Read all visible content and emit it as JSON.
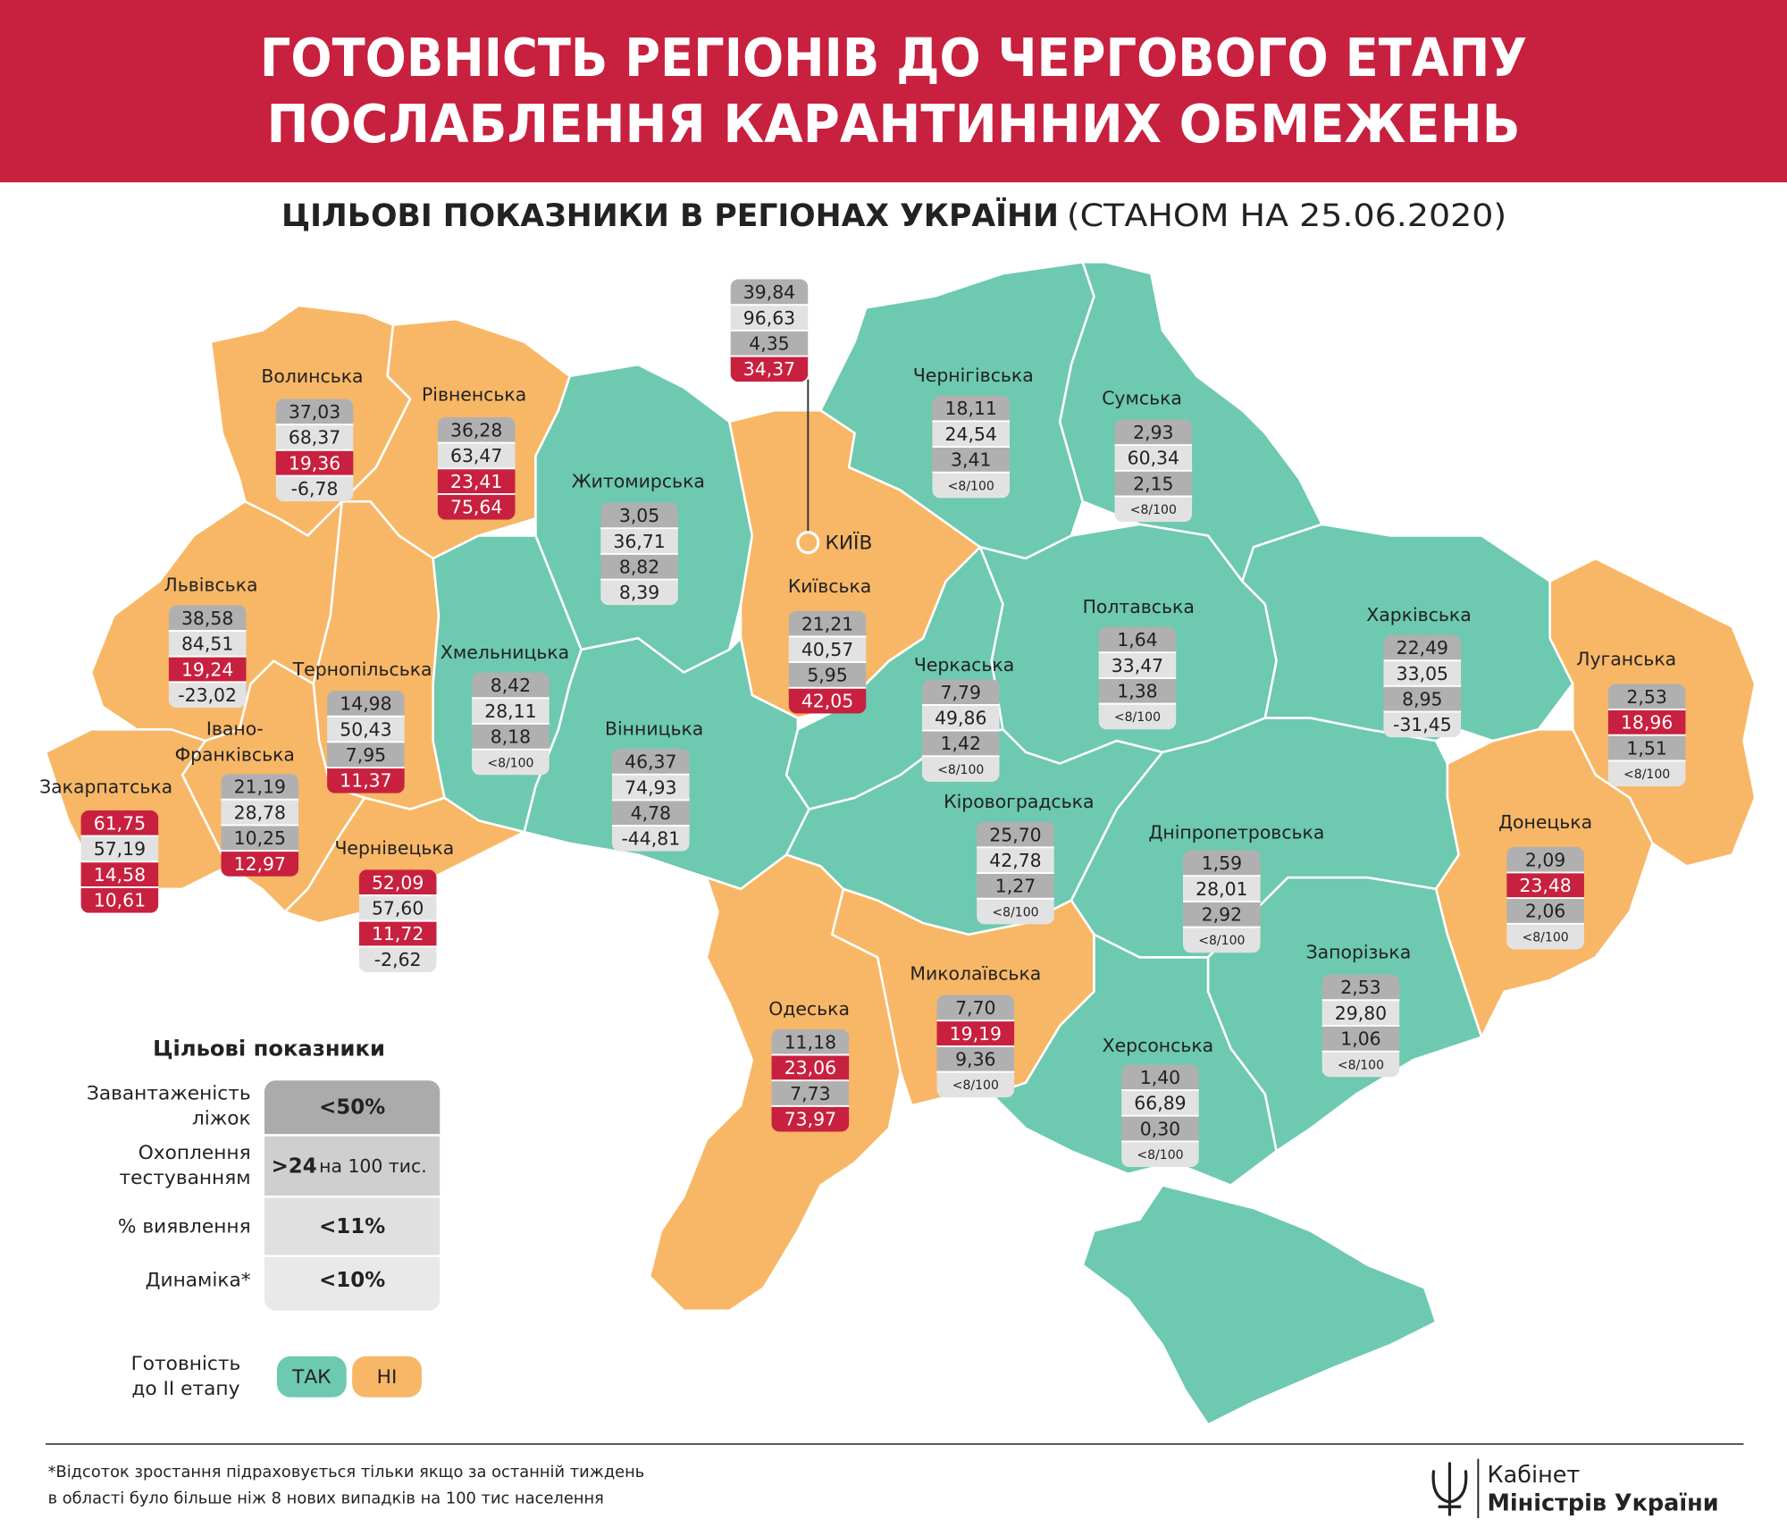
{
  "header": {
    "title_lines": [
      "ГОТОВНІСТЬ РЕГІОНІВ ДО ЧЕРГОВОГО ЕТАПУ",
      "ПОСЛАБЛЕННЯ КАРАНТИННИХ ОБМЕЖЕНЬ"
    ],
    "subtitle": "ЦІЛЬОВІ ПОКАЗНИКИ В РЕГІОНАХ УКРАЇНИ",
    "subtitle_date": "(СТАНОМ НА 25.06.2020)"
  },
  "kyiv_city": {
    "label": "КИЇВ",
    "values": [
      "39,84",
      "96,63",
      "4,35",
      "34,37"
    ],
    "failed": [
      false,
      false,
      false,
      true
    ]
  },
  "regions": [
    {
      "name": [
        "Волинська"
      ],
      "ready": false,
      "values": [
        "37,03",
        "68,37",
        "19,36",
        "-6,78"
      ],
      "failed": [
        false,
        false,
        true,
        false
      ]
    },
    {
      "name": [
        "Рівненська"
      ],
      "ready": false,
      "values": [
        "36,28",
        "63,47",
        "23,41",
        "75,64"
      ],
      "failed": [
        false,
        false,
        true,
        true
      ]
    },
    {
      "name": [
        "Житомирська"
      ],
      "ready": true,
      "values": [
        "3,05",
        "36,71",
        "8,82",
        "8,39"
      ],
      "failed": [
        false,
        false,
        false,
        false
      ]
    },
    {
      "name": [
        "Київська"
      ],
      "ready": false,
      "values": [
        "21,21",
        "40,57",
        "5,95",
        "42,05"
      ],
      "failed": [
        false,
        false,
        false,
        true
      ]
    },
    {
      "name": [
        "Чернігівська"
      ],
      "ready": true,
      "values": [
        "18,11",
        "24,54",
        "3,41",
        "<8/100"
      ],
      "failed": [
        false,
        false,
        false,
        false
      ]
    },
    {
      "name": [
        "Сумська"
      ],
      "ready": true,
      "values": [
        "2,93",
        "60,34",
        "2,15",
        "<8/100"
      ],
      "failed": [
        false,
        false,
        false,
        false
      ]
    },
    {
      "name": [
        "Львівська"
      ],
      "ready": false,
      "values": [
        "38,58",
        "84,51",
        "19,24",
        "-23,02"
      ],
      "failed": [
        false,
        false,
        true,
        false
      ]
    },
    {
      "name": [
        "Тернопільська"
      ],
      "ready": false,
      "values": [
        "14,98",
        "50,43",
        "7,95",
        "11,37"
      ],
      "failed": [
        false,
        false,
        false,
        true
      ]
    },
    {
      "name": [
        "Хмельницька"
      ],
      "ready": true,
      "values": [
        "8,42",
        "28,11",
        "8,18",
        "<8/100"
      ],
      "failed": [
        false,
        false,
        false,
        false
      ]
    },
    {
      "name": [
        "Вінницька"
      ],
      "ready": true,
      "values": [
        "46,37",
        "74,93",
        "4,78",
        "-44,81"
      ],
      "failed": [
        false,
        false,
        false,
        false
      ]
    },
    {
      "name": [
        "Черкаська"
      ],
      "ready": true,
      "values": [
        "7,79",
        "49,86",
        "1,42",
        "<8/100"
      ],
      "failed": [
        false,
        false,
        false,
        false
      ]
    },
    {
      "name": [
        "Полтавська"
      ],
      "ready": true,
      "values": [
        "1,64",
        "33,47",
        "1,38",
        "<8/100"
      ],
      "failed": [
        false,
        false,
        false,
        false
      ]
    },
    {
      "name": [
        "Харківська"
      ],
      "ready": true,
      "values": [
        "22,49",
        "33,05",
        "8,95",
        "-31,45"
      ],
      "failed": [
        false,
        false,
        false,
        false
      ]
    },
    {
      "name": [
        "Луганська"
      ],
      "ready": false,
      "values": [
        "2,53",
        "18,96",
        "1,51",
        "<8/100"
      ],
      "failed": [
        false,
        true,
        false,
        false
      ]
    },
    {
      "name": [
        "Івано-",
        "Франківська"
      ],
      "ready": false,
      "values": [
        "21,19",
        "28,78",
        "10,25",
        "12,97"
      ],
      "failed": [
        false,
        false,
        false,
        true
      ]
    },
    {
      "name": [
        "Закарпатська"
      ],
      "ready": false,
      "values": [
        "61,75",
        "57,19",
        "14,58",
        "10,61"
      ],
      "failed": [
        true,
        false,
        true,
        true
      ]
    },
    {
      "name": [
        "Чернівецька"
      ],
      "ready": false,
      "values": [
        "52,09",
        "57,60",
        "11,72",
        "-2,62"
      ],
      "failed": [
        true,
        false,
        true,
        false
      ]
    },
    {
      "name": [
        "Кіровоградська"
      ],
      "ready": true,
      "values": [
        "25,70",
        "42,78",
        "1,27",
        "<8/100"
      ],
      "failed": [
        false,
        false,
        false,
        false
      ]
    },
    {
      "name": [
        "Дніпропетровська"
      ],
      "ready": true,
      "values": [
        "1,59",
        "28,01",
        "2,92",
        "<8/100"
      ],
      "failed": [
        false,
        false,
        false,
        false
      ]
    },
    {
      "name": [
        "Донецька"
      ],
      "ready": false,
      "values": [
        "2,09",
        "23,48",
        "2,06",
        "<8/100"
      ],
      "failed": [
        false,
        true,
        false,
        false
      ]
    },
    {
      "name": [
        "Запорізька"
      ],
      "ready": true,
      "values": [
        "2,53",
        "29,80",
        "1,06",
        "<8/100"
      ],
      "failed": [
        false,
        false,
        false,
        false
      ]
    },
    {
      "name": [
        "Миколаївська"
      ],
      "ready": false,
      "values": [
        "7,70",
        "19,19",
        "9,36",
        "<8/100"
      ],
      "failed": [
        false,
        true,
        false,
        false
      ]
    },
    {
      "name": [
        "Одеська"
      ],
      "ready": false,
      "values": [
        "11,18",
        "23,06",
        "7,73",
        "73,97"
      ],
      "failed": [
        false,
        true,
        false,
        true
      ]
    },
    {
      "name": [
        "Херсонська"
      ],
      "ready": true,
      "values": [
        "1,40",
        "66,89",
        "0,30",
        "<8/100"
      ],
      "failed": [
        false,
        false,
        false,
        false
      ]
    }
  ],
  "legend": {
    "title": "Цільові показники",
    "rows": [
      {
        "label": [
          "Завантаженість",
          "ліжок"
        ],
        "value": "<50%"
      },
      {
        "label": [
          "Охоплення",
          "тестуванням"
        ],
        "value": ">24",
        "value_note": "на 100 тис."
      },
      {
        "label": [
          "% виявлення"
        ],
        "value": "<11%"
      },
      {
        "label": [
          "Динаміка*"
        ],
        "value": "<10%"
      }
    ],
    "readiness_label": [
      "Готовність",
      "до ІІ етапу"
    ],
    "yes": "ТАК",
    "no": "НІ",
    "colors": {
      "yes": "#6dc9b0",
      "no": "#f8b766",
      "failed": "#c8203f"
    }
  },
  "footnote": [
    "*Відсоток зростання підраховується тільки якщо за останній тиждень",
    "в області було більше ніж  8 нових випадків на 100 тис населення"
  ],
  "logo": [
    "Кабінет",
    "Міністрів України"
  ]
}
